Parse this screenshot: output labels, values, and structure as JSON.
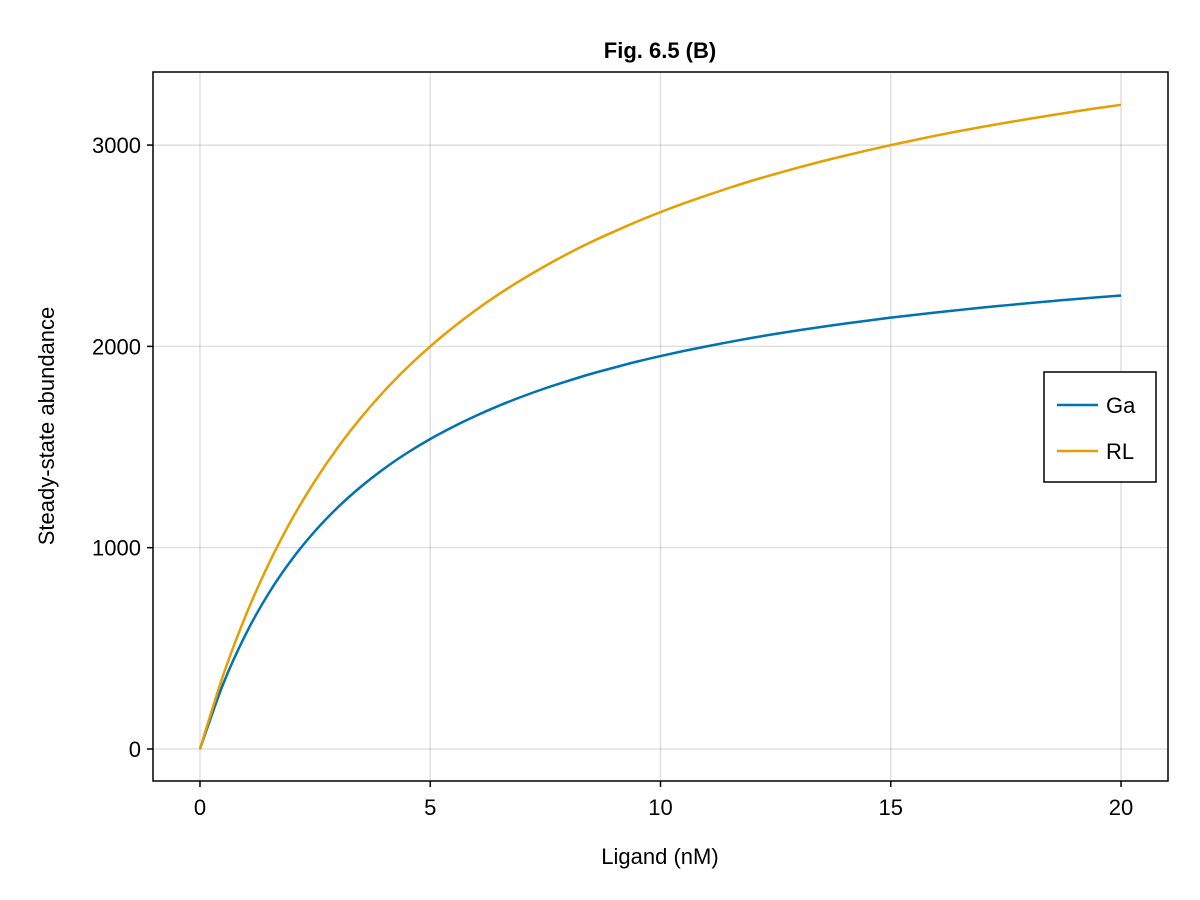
{
  "chart_data": {
    "type": "line",
    "title": "Fig. 6.5 (B)",
    "xlabel": "Ligand (nM)",
    "ylabel": "Steady-state abundance",
    "xlim": [
      -1.02,
      21.02
    ],
    "ylim": [
      -159,
      3363
    ],
    "xticks": [
      0,
      5,
      10,
      15,
      20
    ],
    "yticks": [
      0,
      1000,
      2000,
      3000
    ],
    "grid": true,
    "legend_position": "right",
    "x": [
      0,
      0.5,
      1,
      1.5,
      2,
      2.5,
      3,
      3.5,
      4,
      4.5,
      5,
      5.5,
      6,
      6.5,
      7,
      7.5,
      8,
      8.5,
      9,
      9.5,
      10,
      10.5,
      11,
      11.5,
      12,
      12.5,
      13,
      13.5,
      14,
      14.5,
      15,
      15.5,
      16,
      16.5,
      17,
      17.5,
      18,
      18.5,
      19,
      19.5,
      20
    ],
    "series": [
      {
        "name": "Ga",
        "color": "#0072b2",
        "values": [
          0,
          321,
          573,
          776,
          943,
          1083,
          1202,
          1304,
          1393,
          1471,
          1540,
          1601,
          1656,
          1706,
          1751,
          1792,
          1829,
          1864,
          1895,
          1925,
          1952,
          1977,
          2000,
          2022,
          2043,
          2062,
          2080,
          2097,
          2113,
          2128,
          2143,
          2156,
          2169,
          2181,
          2193,
          2204,
          2215,
          2225,
          2235,
          2244,
          2253
        ]
      },
      {
        "name": "RL",
        "color": "#e69f00",
        "values": [
          0,
          364,
          667,
          923,
          1143,
          1333,
          1500,
          1647,
          1778,
          1895,
          2000,
          2095,
          2182,
          2261,
          2333,
          2400,
          2462,
          2519,
          2571,
          2621,
          2667,
          2710,
          2750,
          2788,
          2824,
          2857,
          2889,
          2919,
          2947,
          2974,
          3000,
          3024,
          3048,
          3070,
          3091,
          3111,
          3130,
          3149,
          3167,
          3184,
          3200
        ]
      }
    ]
  }
}
